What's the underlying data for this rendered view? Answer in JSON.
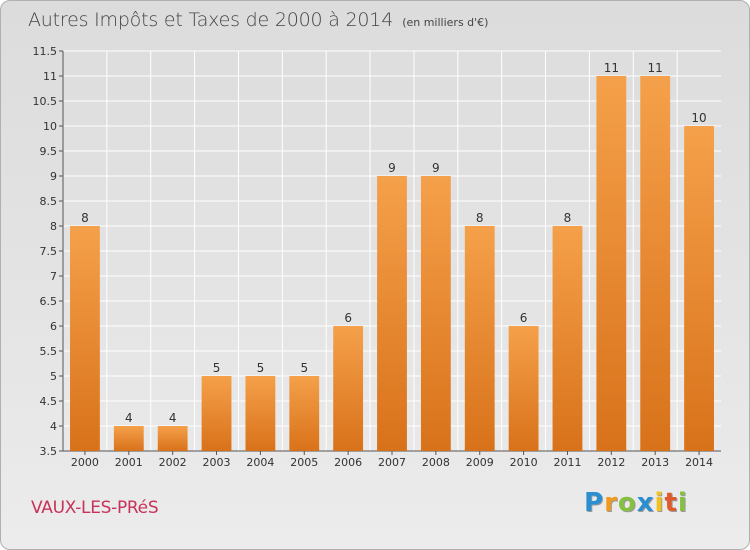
{
  "header": {
    "title": "Autres Impôts et Taxes de 2000 à 2014",
    "subtitle": "(en milliers d'€)"
  },
  "footer": {
    "commune": "VAUX-LES-PRéS",
    "logo_letters": [
      {
        "char": "P",
        "color": "#2a8fd0"
      },
      {
        "char": "r",
        "color": "#f29a1b"
      },
      {
        "char": "o",
        "color": "#86c040"
      },
      {
        "char": "x",
        "color": "#2a8fd0"
      },
      {
        "char": "i",
        "color": "#f2c21b"
      },
      {
        "char": "t",
        "color": "#e05a2b"
      },
      {
        "char": "i",
        "color": "#86c040"
      }
    ]
  },
  "chart_data": {
    "type": "bar",
    "title": "Autres Impôts et Taxes de 2000 à 2014",
    "subtitle": "(en milliers d'€)",
    "categories": [
      "2000",
      "2001",
      "2002",
      "2003",
      "2004",
      "2005",
      "2006",
      "2007",
      "2008",
      "2009",
      "2010",
      "2011",
      "2012",
      "2013",
      "2014"
    ],
    "values": [
      8,
      4,
      4,
      5,
      5,
      5,
      6,
      9,
      9,
      8,
      6,
      8,
      11,
      11,
      10
    ],
    "data_labels": [
      "8",
      "4",
      "4",
      "5",
      "5",
      "5",
      "6",
      "9",
      "9",
      "8",
      "6",
      "8",
      "11",
      "11",
      "10"
    ],
    "ylim": [
      3.5,
      11.5
    ],
    "y_ticks": [
      "3.5",
      "4",
      "4.5",
      "5",
      "5.5",
      "6",
      "6.5",
      "7",
      "7.5",
      "8",
      "8.5",
      "9",
      "9.5",
      "10",
      "10.5",
      "11",
      "11.5"
    ],
    "grid": true,
    "bar_color": "#f5a04a",
    "bar_color_dark": "#d8721a",
    "grid_color": "#ffffff"
  }
}
